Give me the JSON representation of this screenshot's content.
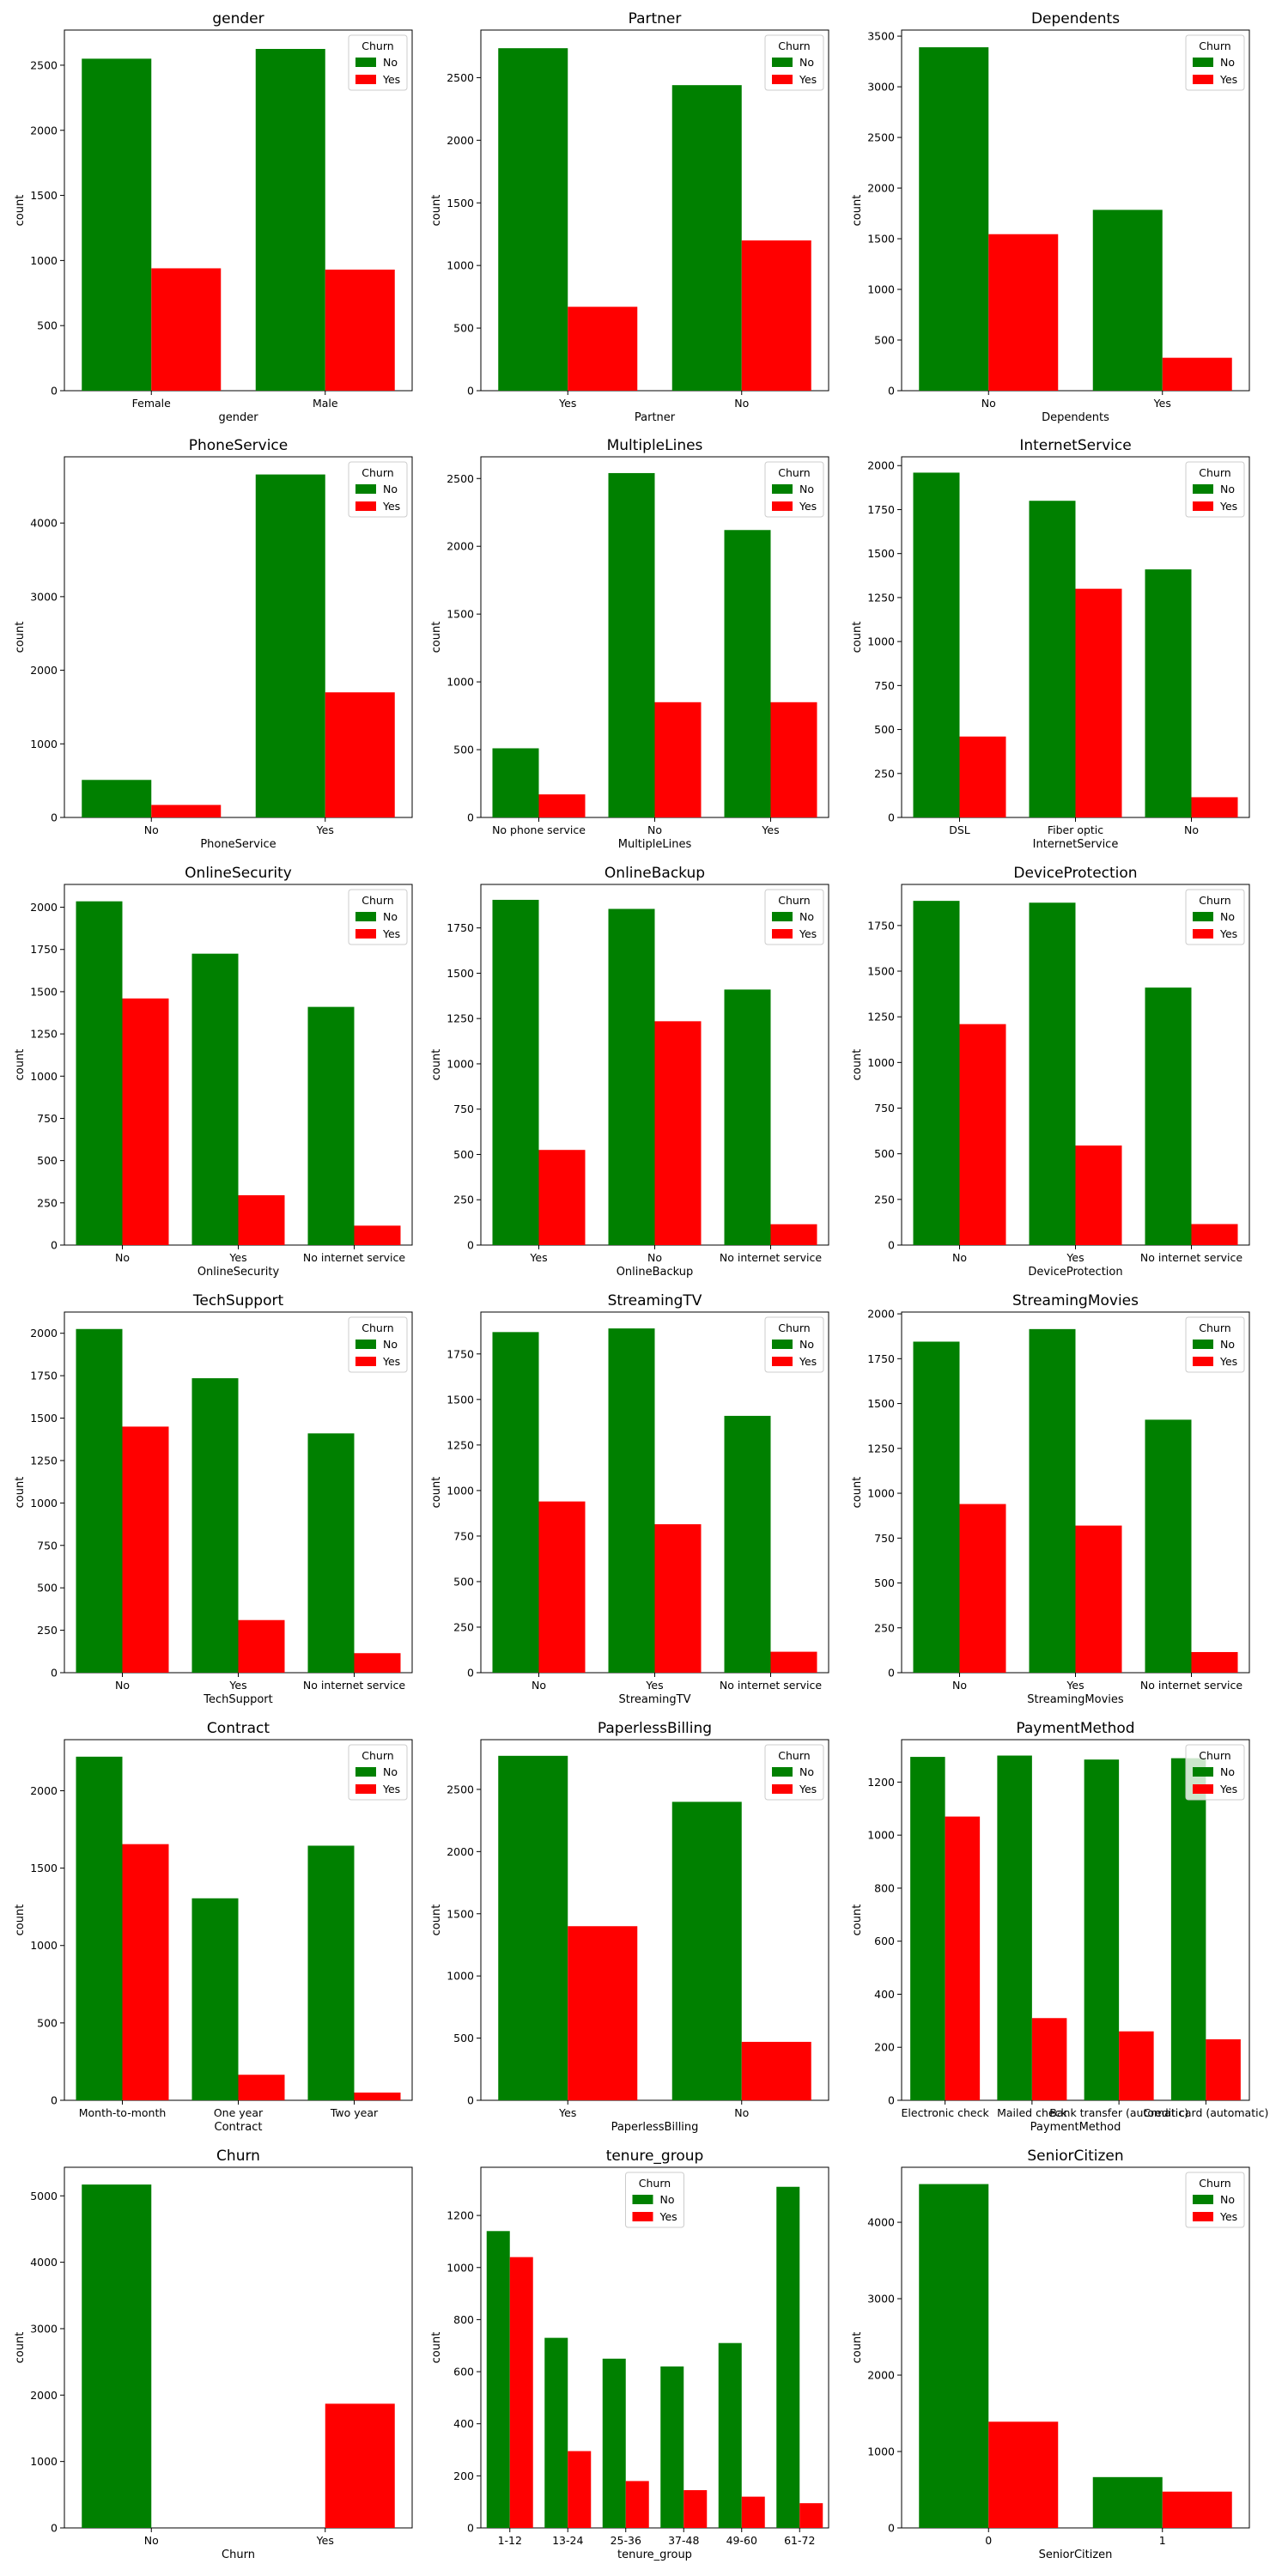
{
  "chart_data": [
    {
      "type": "bar",
      "title": "gender",
      "xlabel": "gender",
      "ylabel": "count",
      "categories": [
        "Female",
        "Male"
      ],
      "ylim": [
        0,
        2770
      ],
      "yticks": [
        0,
        500,
        1000,
        1500,
        2000,
        2500
      ],
      "legend": {
        "title": "Churn",
        "loc": "upper-right"
      },
      "series": [
        {
          "name": "No",
          "color": "#008000",
          "values": [
            2550,
            2625
          ]
        },
        {
          "name": "Yes",
          "color": "#ff0000",
          "values": [
            940,
            930
          ]
        }
      ]
    },
    {
      "type": "bar",
      "title": "Partner",
      "xlabel": "Partner",
      "ylabel": "count",
      "categories": [
        "Yes",
        "No"
      ],
      "ylim": [
        0,
        2880
      ],
      "yticks": [
        0,
        500,
        1000,
        1500,
        2000,
        2500
      ],
      "legend": {
        "title": "Churn",
        "loc": "upper-right"
      },
      "series": [
        {
          "name": "No",
          "color": "#008000",
          "values": [
            2735,
            2440
          ]
        },
        {
          "name": "Yes",
          "color": "#ff0000",
          "values": [
            670,
            1200
          ]
        }
      ]
    },
    {
      "type": "bar",
      "title": "Dependents",
      "xlabel": "Dependents",
      "ylabel": "count",
      "categories": [
        "No",
        "Yes"
      ],
      "ylim": [
        0,
        3560
      ],
      "yticks": [
        0,
        500,
        1000,
        1500,
        2000,
        2500,
        3000,
        3500
      ],
      "legend": {
        "title": "Churn",
        "loc": "upper-right"
      },
      "series": [
        {
          "name": "No",
          "color": "#008000",
          "values": [
            3390,
            1785
          ]
        },
        {
          "name": "Yes",
          "color": "#ff0000",
          "values": [
            1545,
            325
          ]
        }
      ]
    },
    {
      "type": "bar",
      "title": "PhoneService",
      "xlabel": "PhoneService",
      "ylabel": "count",
      "categories": [
        "No",
        "Yes"
      ],
      "ylim": [
        0,
        4900
      ],
      "yticks": [
        0,
        1000,
        2000,
        3000,
        4000
      ],
      "legend": {
        "title": "Churn",
        "loc": "upper-right"
      },
      "series": [
        {
          "name": "No",
          "color": "#008000",
          "values": [
            510,
            4660
          ]
        },
        {
          "name": "Yes",
          "color": "#ff0000",
          "values": [
            170,
            1700
          ]
        }
      ]
    },
    {
      "type": "bar",
      "title": "MultipleLines",
      "xlabel": "MultipleLines",
      "ylabel": "count",
      "categories": [
        "No phone service",
        "No",
        "Yes"
      ],
      "ylim": [
        0,
        2660
      ],
      "yticks": [
        0,
        500,
        1000,
        1500,
        2000,
        2500
      ],
      "legend": {
        "title": "Churn",
        "loc": "upper-right"
      },
      "series": [
        {
          "name": "No",
          "color": "#008000",
          "values": [
            510,
            2540,
            2120
          ]
        },
        {
          "name": "Yes",
          "color": "#ff0000",
          "values": [
            170,
            850,
            850
          ]
        }
      ]
    },
    {
      "type": "bar",
      "title": "InternetService",
      "xlabel": "InternetService",
      "ylabel": "count",
      "categories": [
        "DSL",
        "Fiber optic",
        "No"
      ],
      "ylim": [
        0,
        2050
      ],
      "yticks": [
        0,
        250,
        500,
        750,
        1000,
        1250,
        1500,
        1750,
        2000
      ],
      "legend": {
        "title": "Churn",
        "loc": "upper-right"
      },
      "series": [
        {
          "name": "No",
          "color": "#008000",
          "values": [
            1960,
            1800,
            1410
          ]
        },
        {
          "name": "Yes",
          "color": "#ff0000",
          "values": [
            460,
            1300,
            115
          ]
        }
      ]
    },
    {
      "type": "bar",
      "title": "OnlineSecurity",
      "xlabel": "OnlineSecurity",
      "ylabel": "count",
      "categories": [
        "No",
        "Yes",
        "No internet service"
      ],
      "ylim": [
        0,
        2135
      ],
      "yticks": [
        0,
        250,
        500,
        750,
        1000,
        1250,
        1500,
        1750,
        2000
      ],
      "legend": {
        "title": "Churn",
        "loc": "upper-right"
      },
      "series": [
        {
          "name": "No",
          "color": "#008000",
          "values": [
            2035,
            1725,
            1410
          ]
        },
        {
          "name": "Yes",
          "color": "#ff0000",
          "values": [
            1460,
            295,
            115
          ]
        }
      ]
    },
    {
      "type": "bar",
      "title": "OnlineBackup",
      "xlabel": "OnlineBackup",
      "ylabel": "count",
      "categories": [
        "Yes",
        "No",
        "No internet service"
      ],
      "ylim": [
        0,
        1990
      ],
      "yticks": [
        0,
        250,
        500,
        750,
        1000,
        1250,
        1500,
        1750
      ],
      "legend": {
        "title": "Churn",
        "loc": "upper-right"
      },
      "series": [
        {
          "name": "No",
          "color": "#008000",
          "values": [
            1905,
            1855,
            1410
          ]
        },
        {
          "name": "Yes",
          "color": "#ff0000",
          "values": [
            525,
            1235,
            115
          ]
        }
      ]
    },
    {
      "type": "bar",
      "title": "DeviceProtection",
      "xlabel": "DeviceProtection",
      "ylabel": "count",
      "categories": [
        "No",
        "Yes",
        "No internet service"
      ],
      "ylim": [
        0,
        1975
      ],
      "yticks": [
        0,
        250,
        500,
        750,
        1000,
        1250,
        1500,
        1750
      ],
      "legend": {
        "title": "Churn",
        "loc": "upper-right"
      },
      "series": [
        {
          "name": "No",
          "color": "#008000",
          "values": [
            1885,
            1875,
            1410
          ]
        },
        {
          "name": "Yes",
          "color": "#ff0000",
          "values": [
            1210,
            545,
            115
          ]
        }
      ]
    },
    {
      "type": "bar",
      "title": "TechSupport",
      "xlabel": "TechSupport",
      "ylabel": "count",
      "categories": [
        "No",
        "Yes",
        "No internet service"
      ],
      "ylim": [
        0,
        2125
      ],
      "yticks": [
        0,
        250,
        500,
        750,
        1000,
        1250,
        1500,
        1750,
        2000
      ],
      "legend": {
        "title": "Churn",
        "loc": "upper-right"
      },
      "series": [
        {
          "name": "No",
          "color": "#008000",
          "values": [
            2025,
            1735,
            1410
          ]
        },
        {
          "name": "Yes",
          "color": "#ff0000",
          "values": [
            1450,
            310,
            115
          ]
        }
      ]
    },
    {
      "type": "bar",
      "title": "StreamingTV",
      "xlabel": "StreamingTV",
      "ylabel": "count",
      "categories": [
        "No",
        "Yes",
        "No internet service"
      ],
      "ylim": [
        0,
        1980
      ],
      "yticks": [
        0,
        250,
        500,
        750,
        1000,
        1250,
        1500,
        1750
      ],
      "legend": {
        "title": "Churn",
        "loc": "upper-right"
      },
      "series": [
        {
          "name": "No",
          "color": "#008000",
          "values": [
            1870,
            1890,
            1410
          ]
        },
        {
          "name": "Yes",
          "color": "#ff0000",
          "values": [
            940,
            815,
            115
          ]
        }
      ]
    },
    {
      "type": "bar",
      "title": "StreamingMovies",
      "xlabel": "StreamingMovies",
      "ylabel": "count",
      "categories": [
        "No",
        "Yes",
        "No internet service"
      ],
      "ylim": [
        0,
        2010
      ],
      "yticks": [
        0,
        250,
        500,
        750,
        1000,
        1250,
        1500,
        1750,
        2000
      ],
      "legend": {
        "title": "Churn",
        "loc": "upper-right"
      },
      "series": [
        {
          "name": "No",
          "color": "#008000",
          "values": [
            1845,
            1915,
            1410
          ]
        },
        {
          "name": "Yes",
          "color": "#ff0000",
          "values": [
            940,
            820,
            115
          ]
        }
      ]
    },
    {
      "type": "bar",
      "title": "Contract",
      "xlabel": "Contract",
      "ylabel": "count",
      "categories": [
        "Month-to-month",
        "One year",
        "Two year"
      ],
      "ylim": [
        0,
        2330
      ],
      "yticks": [
        0,
        500,
        1000,
        1500,
        2000
      ],
      "legend": {
        "title": "Churn",
        "loc": "upper-right"
      },
      "series": [
        {
          "name": "No",
          "color": "#008000",
          "values": [
            2220,
            1305,
            1645
          ]
        },
        {
          "name": "Yes",
          "color": "#ff0000",
          "values": [
            1655,
            165,
            50
          ]
        }
      ]
    },
    {
      "type": "bar",
      "title": "PaperlessBilling",
      "xlabel": "PaperlessBilling",
      "ylabel": "count",
      "categories": [
        "Yes",
        "No"
      ],
      "ylim": [
        0,
        2900
      ],
      "yticks": [
        0,
        500,
        1000,
        1500,
        2000,
        2500
      ],
      "legend": {
        "title": "Churn",
        "loc": "upper-right"
      },
      "series": [
        {
          "name": "No",
          "color": "#008000",
          "values": [
            2770,
            2400
          ]
        },
        {
          "name": "Yes",
          "color": "#ff0000",
          "values": [
            1400,
            470
          ]
        }
      ]
    },
    {
      "type": "bar",
      "title": "PaymentMethod",
      "xlabel": "PaymentMethod",
      "ylabel": "count",
      "categories": [
        "Electronic check",
        "Mailed check",
        "Bank transfer (automatic)",
        "Credit card (automatic)"
      ],
      "ylim": [
        0,
        1360
      ],
      "yticks": [
        0,
        200,
        400,
        600,
        800,
        1000,
        1200
      ],
      "legend": {
        "title": "Churn",
        "loc": "upper-right"
      },
      "series": [
        {
          "name": "No",
          "color": "#008000",
          "values": [
            1295,
            1300,
            1285,
            1290
          ]
        },
        {
          "name": "Yes",
          "color": "#ff0000",
          "values": [
            1070,
            310,
            260,
            230
          ]
        }
      ]
    },
    {
      "type": "bar",
      "title": "Churn",
      "xlabel": "Churn",
      "ylabel": "count",
      "categories": [
        "No",
        "Yes"
      ],
      "ylim": [
        0,
        5430
      ],
      "yticks": [
        0,
        1000,
        2000,
        3000,
        4000,
        5000
      ],
      "series": [
        {
          "name": "",
          "color": "#008000",
          "values": [
            5170,
            0
          ]
        },
        {
          "name": "",
          "color": "#ff0000",
          "values": [
            0,
            1870
          ]
        }
      ]
    },
    {
      "type": "bar",
      "title": "tenure_group",
      "xlabel": "tenure_group",
      "ylabel": "count",
      "categories": [
        "1-12",
        "13-24",
        "25-36",
        "37-48",
        "49-60",
        "61-72"
      ],
      "ylim": [
        0,
        1385
      ],
      "yticks": [
        0,
        200,
        400,
        600,
        800,
        1000,
        1200
      ],
      "legend": {
        "title": "Churn",
        "loc": "upper-center"
      },
      "series": [
        {
          "name": "No",
          "color": "#008000",
          "values": [
            1140,
            730,
            650,
            620,
            710,
            1310
          ]
        },
        {
          "name": "Yes",
          "color": "#ff0000",
          "values": [
            1040,
            295,
            180,
            145,
            120,
            95
          ]
        }
      ]
    },
    {
      "type": "bar",
      "title": "SeniorCitizen",
      "xlabel": "SeniorCitizen",
      "ylabel": "count",
      "categories": [
        "0",
        "1"
      ],
      "ylim": [
        0,
        4720
      ],
      "yticks": [
        0,
        1000,
        2000,
        3000,
        4000
      ],
      "legend": {
        "title": "Churn",
        "loc": "upper-right"
      },
      "series": [
        {
          "name": "No",
          "color": "#008000",
          "values": [
            4500,
            665
          ]
        },
        {
          "name": "Yes",
          "color": "#ff0000",
          "values": [
            1390,
            475
          ]
        }
      ]
    }
  ]
}
